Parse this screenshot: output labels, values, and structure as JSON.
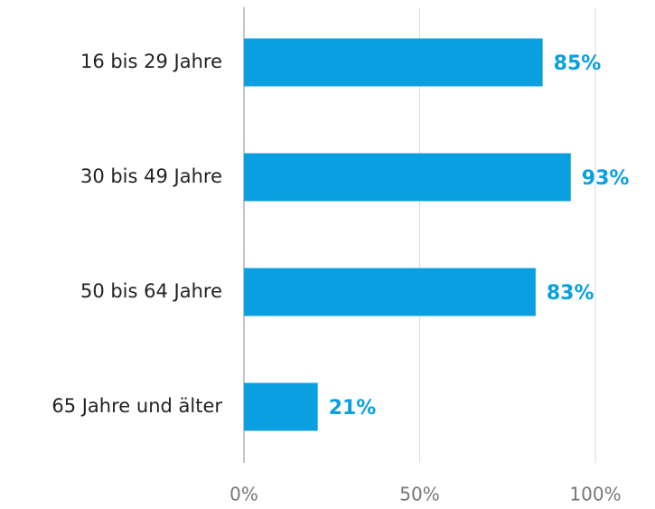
{
  "chart_data": {
    "type": "bar",
    "orientation": "horizontal",
    "categories": [
      "16 bis 29 Jahre",
      "30 bis 49 Jahre",
      "50 bis 64 Jahre",
      "65 Jahre und älter"
    ],
    "values": [
      85,
      93,
      83,
      21
    ],
    "value_labels": [
      "85%",
      "93%",
      "83%",
      "21%"
    ],
    "color": "#0a9fe0",
    "xlim": [
      0,
      100
    ],
    "xticks": [
      {
        "value": 0,
        "label": "0%"
      },
      {
        "value": 50,
        "label": "50%"
      },
      {
        "value": 100,
        "label": "100%"
      }
    ],
    "grid": true
  }
}
